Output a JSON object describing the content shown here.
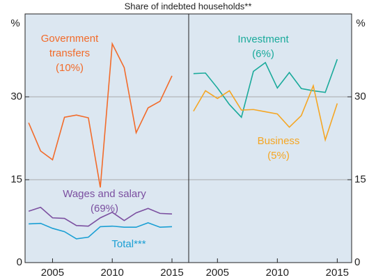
{
  "subtitle": "Share of indebted households**",
  "chart_data": [
    {
      "type": "line",
      "ylabel": "%",
      "yaxis_side": "left",
      "x": [
        2003,
        2004,
        2005,
        2006,
        2007,
        2008,
        2009,
        2010,
        2011,
        2012,
        2013,
        2014,
        2015
      ],
      "xlim": [
        2002.7,
        2016.4
      ],
      "xticks": [
        2005,
        2010,
        2015
      ],
      "ylim": [
        0,
        45
      ],
      "yticks": [
        0,
        15,
        30
      ],
      "grid": true,
      "series": [
        {
          "name": "Government transfers",
          "share_label": "(10%)",
          "color": "#f26b2a",
          "values": [
            25.3,
            20.2,
            18.6,
            26.3,
            26.7,
            26.2,
            13.6,
            39.6,
            35.3,
            23.5,
            28.0,
            29.2,
            33.8
          ]
        },
        {
          "name": "Wages and salary",
          "share_label": "(69%)",
          "color": "#7b4fa0",
          "values": [
            9.3,
            10.0,
            8.1,
            8.0,
            6.7,
            6.6,
            8.1,
            9.1,
            7.6,
            9.0,
            9.8,
            8.9,
            8.8
          ]
        },
        {
          "name": "Total***",
          "color": "#1a9fd4",
          "values": [
            7.0,
            7.1,
            6.2,
            5.6,
            4.3,
            4.6,
            6.5,
            6.6,
            6.4,
            6.4,
            7.2,
            6.4,
            6.5
          ]
        }
      ]
    },
    {
      "type": "line",
      "ylabel": "%",
      "yaxis_side": "right",
      "x": [
        2003,
        2004,
        2005,
        2006,
        2007,
        2008,
        2009,
        2010,
        2011,
        2012,
        2013,
        2014,
        2015
      ],
      "xlim": [
        2002.6,
        2016.2
      ],
      "xticks": [
        2005,
        2010,
        2015
      ],
      "ylim": [
        0,
        45
      ],
      "yticks": [
        0,
        15,
        30
      ],
      "grid": true,
      "series": [
        {
          "name": "Investment",
          "share_label": "(6%)",
          "color": "#1aaa9b",
          "values": [
            34.2,
            34.3,
            31.6,
            28.6,
            26.3,
            34.6,
            36.2,
            31.6,
            34.4,
            31.5,
            31.1,
            30.8,
            36.8
          ]
        },
        {
          "name": "Business",
          "share_label": "(5%)",
          "color": "#f5a623",
          "values": [
            27.4,
            31.1,
            29.7,
            31.1,
            27.6,
            27.7,
            27.3,
            26.9,
            24.5,
            26.6,
            32.0,
            22.2,
            28.8
          ]
        }
      ]
    }
  ]
}
